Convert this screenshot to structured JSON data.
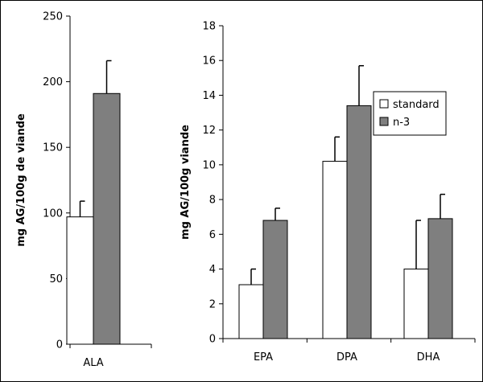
{
  "chart_data": [
    {
      "type": "bar",
      "title": "",
      "xlabel": "",
      "ylabel": "mg AG/100g de viande",
      "ylim": [
        0,
        250
      ],
      "yticks": [
        0,
        50,
        100,
        150,
        200,
        250
      ],
      "categories": [
        "ALA"
      ],
      "series": [
        {
          "name": "standard",
          "values": [
            97
          ],
          "errors": [
            12
          ]
        },
        {
          "name": "n-3",
          "values": [
            191
          ],
          "errors": [
            25
          ]
        }
      ],
      "grid": false
    },
    {
      "type": "bar",
      "title": "",
      "xlabel": "",
      "ylabel": "mg AG/100g viande",
      "ylim": [
        0,
        18
      ],
      "yticks": [
        0,
        2,
        4,
        6,
        8,
        10,
        12,
        14,
        16,
        18
      ],
      "categories": [
        "EPA",
        "DPA",
        "DHA"
      ],
      "series": [
        {
          "name": "standard",
          "values": [
            3.1,
            10.2,
            4.0
          ],
          "errors": [
            0.9,
            1.4,
            2.8
          ]
        },
        {
          "name": "n-3",
          "values": [
            6.8,
            13.4,
            6.9
          ],
          "errors": [
            0.7,
            2.3,
            1.4
          ]
        }
      ],
      "legend_position": "top-right",
      "grid": false
    }
  ],
  "colors": {
    "standard": "#ffffff",
    "n-3": "#7f7f7f",
    "stroke": "#000000"
  }
}
